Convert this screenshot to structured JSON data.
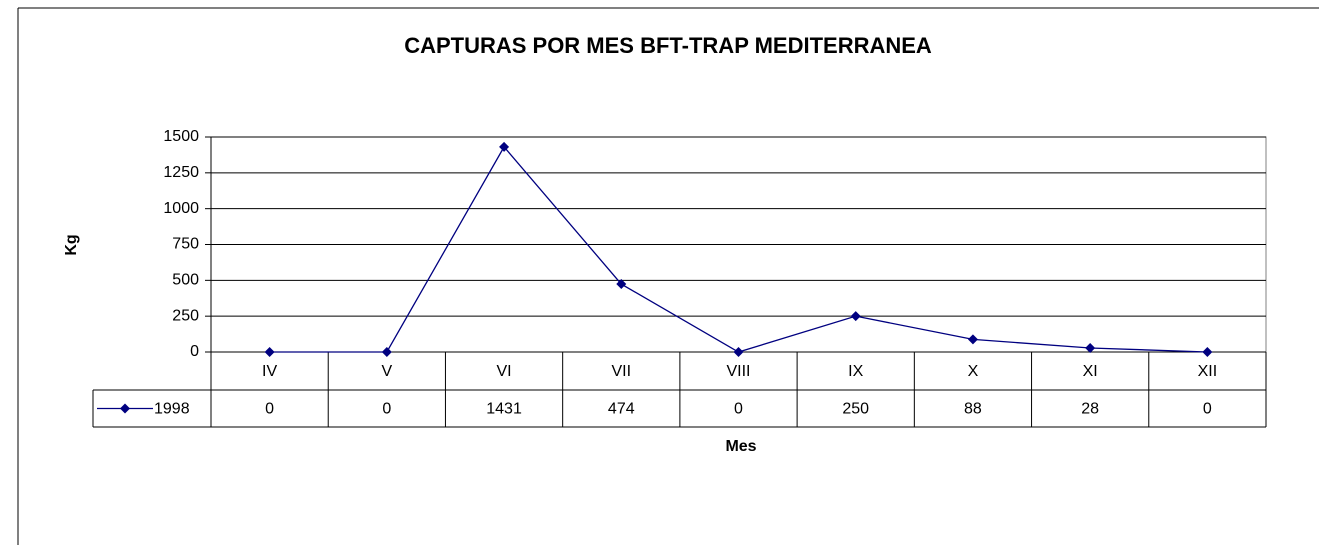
{
  "chart_data": {
    "type": "line",
    "title": "CAPTURAS POR MES  BFT-TRAP MEDITERRANEA",
    "y_label": "Kg",
    "x_label": "Mes",
    "categories": [
      "IV",
      "V",
      "VI",
      "VII",
      "VIII",
      "IX",
      "X",
      "XI",
      "XII"
    ],
    "series": [
      {
        "name": "1998",
        "color": "#000080",
        "values": [
          0,
          0,
          1431,
          474,
          0,
          250,
          88,
          28,
          0
        ]
      }
    ],
    "ylim": [
      0,
      1500
    ],
    "yticks": [
      0,
      250,
      500,
      750,
      1000,
      1250,
      1500
    ],
    "grid": true,
    "data_table": true
  }
}
